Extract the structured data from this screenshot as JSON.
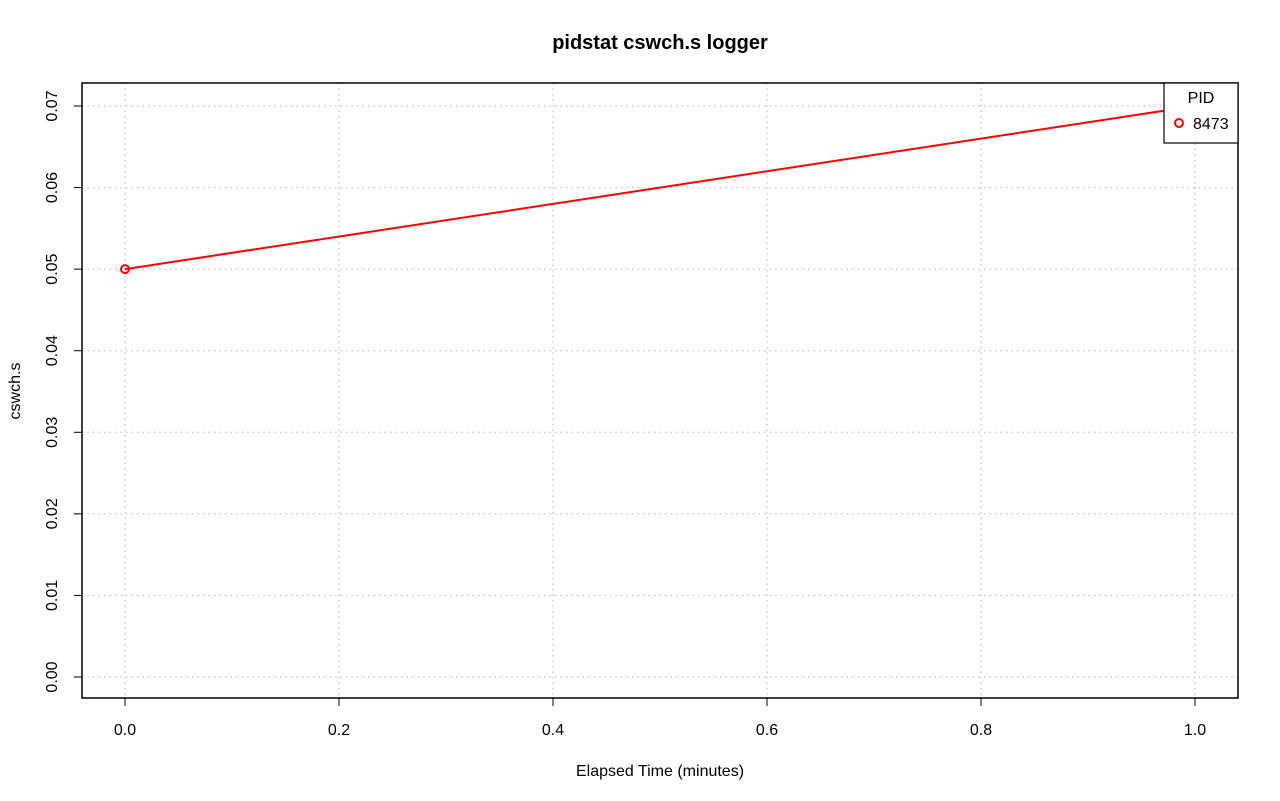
{
  "chart_data": {
    "type": "line",
    "title": "pidstat cswch.s logger",
    "xlabel": "Elapsed Time (minutes)",
    "ylabel": "cswch.s",
    "xlim": [
      0.0,
      1.0
    ],
    "ylim": [
      0.0,
      0.07
    ],
    "x_ticks": [
      "0.0",
      "0.2",
      "0.4",
      "0.6",
      "0.8",
      "1.0"
    ],
    "y_ticks": [
      "0.00",
      "0.01",
      "0.02",
      "0.03",
      "0.04",
      "0.05",
      "0.06",
      "0.07"
    ],
    "grid": true,
    "legend": {
      "title": "PID",
      "placement": "top-right"
    },
    "series": [
      {
        "name": "8473",
        "color": "#ff0000",
        "x": [
          0.0,
          1.0
        ],
        "y": [
          0.05,
          0.07
        ]
      }
    ]
  }
}
